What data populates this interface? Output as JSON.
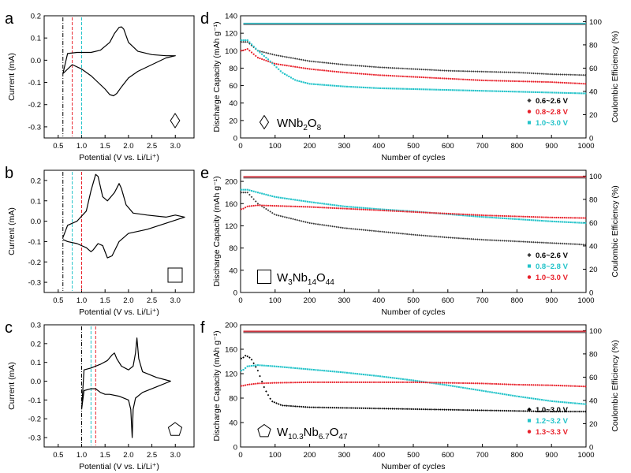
{
  "chart_data": [
    {
      "panel": "a",
      "type": "line",
      "xlabel": "Potential (V vs. Li/Li⁺)",
      "ylabel": "Current (mA)",
      "xlim": [
        0.2,
        3.4
      ],
      "ylim": [
        -0.35,
        0.2
      ],
      "xticks": [
        0.5,
        1.0,
        1.5,
        2.0,
        2.5,
        3.0
      ],
      "xticklabels": [
        "0.5",
        "1.0",
        "1.5",
        "2.0",
        "2.5",
        "3.0"
      ],
      "yticks": [
        -0.3,
        -0.2,
        -0.1,
        0.0,
        0.1,
        0.2
      ],
      "yticklabels": [
        "-0.3",
        "-0.2",
        "-0.1",
        "0.0",
        "0.1",
        "0.2"
      ],
      "vlines": [
        {
          "x": 0.6,
          "color": "#000000"
        },
        {
          "x": 0.8,
          "color": "#e8202a"
        },
        {
          "x": 1.0,
          "color": "#22c3c9"
        }
      ],
      "symbol": "diamond",
      "curve_upper": {
        "x": [
          0.6,
          0.7,
          0.9,
          1.2,
          1.4,
          1.6,
          1.7,
          1.8,
          1.85,
          1.9,
          2.0,
          2.2,
          2.5,
          2.8,
          3.0
        ],
        "y": [
          -0.06,
          0.03,
          0.035,
          0.035,
          0.045,
          0.08,
          0.12,
          0.148,
          0.15,
          0.14,
          0.08,
          0.04,
          0.025,
          0.02,
          0.02
        ]
      },
      "curve_lower": {
        "x": [
          3.0,
          2.8,
          2.5,
          2.2,
          2.0,
          1.85,
          1.75,
          1.68,
          1.6,
          1.5,
          1.35,
          1.2,
          1.0,
          0.8,
          0.6
        ],
        "y": [
          0.02,
          0.01,
          -0.02,
          -0.05,
          -0.08,
          -0.12,
          -0.15,
          -0.16,
          -0.155,
          -0.13,
          -0.1,
          -0.07,
          -0.04,
          -0.02,
          -0.06
        ]
      }
    },
    {
      "panel": "b",
      "type": "line",
      "xlabel": "Potential (V vs. Li/Li⁺)",
      "ylabel": "Current (mA)",
      "xlim": [
        0.2,
        3.4
      ],
      "ylim": [
        -0.35,
        0.25
      ],
      "xticks": [
        0.5,
        1.0,
        1.5,
        2.0,
        2.5,
        3.0
      ],
      "xticklabels": [
        "0.5",
        "1.0",
        "1.5",
        "2.0",
        "2.5",
        "3.0"
      ],
      "yticks": [
        -0.3,
        -0.2,
        -0.1,
        0.0,
        0.1,
        0.2
      ],
      "yticklabels": [
        "-0.3",
        "-0.2",
        "-0.1",
        "0.0",
        "0.1",
        "0.2"
      ],
      "vlines": [
        {
          "x": 0.6,
          "color": "#000000"
        },
        {
          "x": 0.8,
          "color": "#22c3c9"
        },
        {
          "x": 1.0,
          "color": "#e8202a"
        }
      ],
      "symbol": "square",
      "curve_upper": {
        "x": [
          0.6,
          0.7,
          0.9,
          1.1,
          1.2,
          1.3,
          1.35,
          1.45,
          1.55,
          1.7,
          1.8,
          1.85,
          1.95,
          2.1,
          2.4,
          2.8,
          3.0,
          3.2
        ],
        "y": [
          -0.08,
          -0.02,
          0.0,
          0.05,
          0.15,
          0.23,
          0.22,
          0.12,
          0.1,
          0.14,
          0.185,
          0.16,
          0.08,
          0.04,
          0.03,
          0.02,
          0.03,
          0.02
        ]
      },
      "curve_lower": {
        "x": [
          3.2,
          2.8,
          2.4,
          2.0,
          1.8,
          1.65,
          1.55,
          1.45,
          1.35,
          1.25,
          1.2,
          1.1,
          0.9,
          0.7,
          0.6
        ],
        "y": [
          0.02,
          -0.01,
          -0.04,
          -0.06,
          -0.1,
          -0.17,
          -0.18,
          -0.12,
          -0.11,
          -0.14,
          -0.15,
          -0.13,
          -0.11,
          -0.1,
          -0.09
        ]
      }
    },
    {
      "panel": "c",
      "type": "line",
      "xlabel": "Potential (V vs. Li/Li⁺)",
      "ylabel": "Current (mA)",
      "xlim": [
        0.2,
        3.4
      ],
      "ylim": [
        -0.35,
        0.3
      ],
      "xticks": [
        0.5,
        1.0,
        1.5,
        2.0,
        2.5,
        3.0
      ],
      "xticklabels": [
        "0.5",
        "1.0",
        "1.5",
        "2.0",
        "2.5",
        "3.0"
      ],
      "yticks": [
        -0.3,
        -0.2,
        -0.1,
        0.0,
        0.1,
        0.2,
        0.3
      ],
      "yticklabels": [
        "-0.3",
        "-0.2",
        "-0.1",
        "0.0",
        "0.1",
        "0.2",
        "0.3"
      ],
      "vlines": [
        {
          "x": 1.0,
          "color": "#000000"
        },
        {
          "x": 1.2,
          "color": "#22c3c9"
        },
        {
          "x": 1.3,
          "color": "#e8202a"
        }
      ],
      "symbol": "pentagon",
      "curve_upper": {
        "x": [
          1.0,
          1.05,
          1.2,
          1.4,
          1.55,
          1.65,
          1.7,
          1.75,
          1.85,
          2.0,
          2.1,
          2.15,
          2.18,
          2.22,
          2.3,
          2.6,
          2.9
        ],
        "y": [
          -0.15,
          0.06,
          0.07,
          0.09,
          0.11,
          0.14,
          0.15,
          0.12,
          0.08,
          0.06,
          0.08,
          0.15,
          0.23,
          0.12,
          0.05,
          0.02,
          0.0
        ]
      },
      "curve_lower": {
        "x": [
          2.9,
          2.6,
          2.3,
          2.15,
          2.1,
          2.08,
          2.05,
          2.0,
          1.8,
          1.6,
          1.5,
          1.4,
          1.3,
          1.2,
          1.05,
          1.0
        ],
        "y": [
          0.0,
          -0.03,
          -0.06,
          -0.09,
          -0.15,
          -0.3,
          -0.15,
          -0.1,
          -0.08,
          -0.07,
          -0.07,
          -0.06,
          -0.04,
          -0.04,
          -0.05,
          -0.15
        ]
      }
    },
    {
      "panel": "d",
      "type": "scatter",
      "xlabel": "Number of cycles",
      "ylabel": "Discharge Capacity (mAh g⁻¹)",
      "ylabel2": "Coulombic Efficiency (%)",
      "xlim": [
        0,
        1000
      ],
      "ylim": [
        0,
        140
      ],
      "y2lim": [
        0,
        105
      ],
      "xticks": [
        0,
        100,
        200,
        300,
        400,
        500,
        600,
        700,
        800,
        900,
        1000
      ],
      "yticks": [
        0,
        20,
        40,
        60,
        80,
        100,
        120,
        140
      ],
      "y2ticks": [
        0,
        20,
        40,
        60,
        80,
        100
      ],
      "compound": [
        "WNb",
        "2",
        "O",
        "8"
      ],
      "symbol": "diamond",
      "legend_position": "bottom-right",
      "ce_level": 98,
      "series": [
        {
          "name": "0.6~2.6 V",
          "color": "#3a3a3a",
          "marker": "diamond",
          "x": [
            5,
            20,
            50,
            100,
            200,
            300,
            400,
            500,
            600,
            700,
            800,
            900,
            1000
          ],
          "y": [
            110,
            110,
            100,
            95,
            88,
            84,
            81,
            79,
            77,
            76,
            75,
            73,
            72
          ]
        },
        {
          "name": "0.8~2.8 V",
          "color": "#e8202a",
          "marker": "circle",
          "x": [
            5,
            20,
            50,
            100,
            200,
            300,
            400,
            500,
            600,
            700,
            800,
            900,
            1000
          ],
          "y": [
            100,
            102,
            92,
            85,
            79,
            75,
            72,
            70,
            68,
            66,
            65,
            64,
            62
          ]
        },
        {
          "name": "1.0~3.0 V",
          "color": "#22c3c9",
          "marker": "square",
          "x": [
            5,
            20,
            50,
            80,
            120,
            160,
            200,
            300,
            400,
            500,
            600,
            700,
            800,
            900,
            1000
          ],
          "y": [
            112,
            112,
            100,
            90,
            75,
            66,
            62,
            59,
            57,
            56,
            55,
            54,
            53,
            52,
            51
          ]
        }
      ]
    },
    {
      "panel": "e",
      "type": "scatter",
      "xlabel": "Number of cycles",
      "ylabel": "Discharge Capacity (mAh g⁻¹)",
      "ylabel2": "Coulombic Efficiency (%)",
      "xlim": [
        0,
        1000
      ],
      "ylim": [
        0,
        220
      ],
      "y2lim": [
        0,
        105
      ],
      "xticks": [
        0,
        100,
        200,
        300,
        400,
        500,
        600,
        700,
        800,
        900,
        1000
      ],
      "yticks": [
        0,
        40,
        80,
        120,
        160,
        200
      ],
      "y2ticks": [
        0,
        20,
        40,
        60,
        80,
        100
      ],
      "compound": [
        "W",
        "3",
        "Nb",
        "14",
        "O",
        "44"
      ],
      "symbol": "square",
      "legend_position": "bottom-right",
      "ce_level": 99,
      "series": [
        {
          "name": "0.6~2.6 V",
          "color": "#3a3a3a",
          "marker": "diamond",
          "x": [
            5,
            20,
            50,
            100,
            200,
            300,
            400,
            500,
            600,
            700,
            800,
            900,
            1000
          ],
          "y": [
            180,
            180,
            160,
            140,
            125,
            116,
            110,
            104,
            99,
            95,
            92,
            89,
            86
          ]
        },
        {
          "name": "0.8~2.8 V",
          "color": "#22c3c9",
          "marker": "square",
          "x": [
            5,
            20,
            50,
            100,
            200,
            300,
            400,
            500,
            600,
            700,
            800,
            900,
            1000
          ],
          "y": [
            185,
            185,
            180,
            172,
            163,
            155,
            150,
            146,
            141,
            136,
            132,
            128,
            125
          ]
        },
        {
          "name": "1.0~3.0 V",
          "color": "#e8202a",
          "marker": "circle",
          "x": [
            5,
            20,
            50,
            100,
            200,
            300,
            400,
            500,
            600,
            700,
            800,
            900,
            1000
          ],
          "y": [
            150,
            155,
            157,
            156,
            154,
            151,
            148,
            145,
            142,
            139,
            137,
            135,
            134
          ]
        }
      ]
    },
    {
      "panel": "f",
      "type": "scatter",
      "xlabel": "Number of cycles",
      "ylabel": "Discharge Capacity (mAh g⁻¹)",
      "ylabel2": "Coulombic Efficiency (%)",
      "xlim": [
        0,
        1000
      ],
      "ylim": [
        0,
        200
      ],
      "y2lim": [
        0,
        105
      ],
      "xticks": [
        0,
        100,
        200,
        300,
        400,
        500,
        600,
        700,
        800,
        900,
        1000
      ],
      "yticks": [
        0,
        40,
        80,
        120,
        160,
        200
      ],
      "y2ticks": [
        0,
        20,
        40,
        60,
        80,
        100
      ],
      "compound": [
        "W",
        "10.3",
        "Nb",
        "6.7",
        "O",
        "47"
      ],
      "symbol": "pentagon",
      "legend_position": "bottom-right",
      "ce_level": 99,
      "series": [
        {
          "name": "1.0~3.0 V",
          "color": "#000000",
          "marker": "diamond",
          "x": [
            5,
            15,
            30,
            50,
            70,
            90,
            120,
            200,
            300,
            400,
            500,
            600,
            700,
            800,
            900,
            1000
          ],
          "y": [
            145,
            150,
            145,
            125,
            95,
            75,
            68,
            65,
            64,
            63,
            62,
            61,
            60,
            59,
            58,
            58
          ]
        },
        {
          "name": "1.2~3.2 V",
          "color": "#22c3c9",
          "marker": "square",
          "x": [
            5,
            20,
            50,
            100,
            200,
            300,
            400,
            500,
            600,
            700,
            800,
            900,
            1000
          ],
          "y": [
            125,
            132,
            134,
            132,
            127,
            122,
            116,
            109,
            101,
            92,
            83,
            75,
            70
          ]
        },
        {
          "name": "1.3~3.3 V",
          "color": "#e8202a",
          "marker": "circle",
          "x": [
            5,
            20,
            50,
            100,
            200,
            300,
            400,
            500,
            600,
            700,
            800,
            900,
            1000
          ],
          "y": [
            100,
            102,
            104,
            105,
            106,
            106,
            106,
            106,
            105,
            104,
            102,
            101,
            99
          ]
        }
      ]
    }
  ],
  "panel_labels": [
    "a",
    "b",
    "c",
    "d",
    "e",
    "f"
  ]
}
